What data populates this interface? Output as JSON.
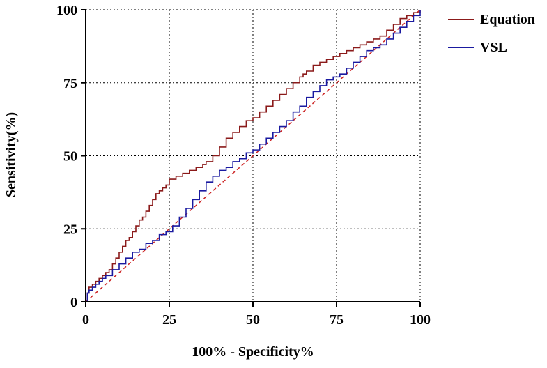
{
  "chart_data": {
    "type": "line",
    "title": "",
    "xlabel": "100% - Specificity%",
    "ylabel": "Sensitivity(%)",
    "xlim": [
      0,
      100
    ],
    "ylim": [
      0,
      100
    ],
    "xticks": [
      0,
      25,
      50,
      75,
      100
    ],
    "yticks": [
      0,
      25,
      50,
      75,
      100
    ],
    "grid": "dotted",
    "legend_position": "top-right",
    "series": [
      {
        "name": "Equation",
        "color": "#8b1a1a",
        "x": [
          0,
          0.5,
          1,
          2,
          3,
          4,
          5,
          6,
          7,
          8,
          9,
          10,
          11,
          12,
          13,
          14,
          15,
          16,
          17,
          18,
          19,
          20,
          21,
          22,
          23,
          24,
          25,
          27,
          29,
          31,
          33,
          35,
          36,
          38,
          40,
          42,
          44,
          46,
          48,
          50,
          52,
          54,
          56,
          58,
          60,
          62,
          64,
          65,
          66,
          68,
          70,
          72,
          74,
          76,
          78,
          80,
          82,
          84,
          86,
          88,
          90,
          92,
          94,
          96,
          98,
          100
        ],
        "y": [
          0,
          3,
          5,
          6,
          7,
          8,
          9,
          10,
          11,
          13,
          15,
          17,
          19,
          21,
          22,
          24,
          26,
          28,
          29,
          31,
          33,
          35,
          37,
          38,
          39,
          40,
          42,
          43,
          44,
          45,
          46,
          47,
          48,
          50,
          53,
          56,
          58,
          60,
          62,
          63,
          65,
          67,
          69,
          71,
          73,
          75,
          77,
          78,
          79,
          81,
          82,
          83,
          84,
          85,
          86,
          87,
          88,
          89,
          90,
          91,
          93,
          95,
          97,
          98,
          99,
          100
        ]
      },
      {
        "name": "VSL",
        "color": "#1a1aa0",
        "x": [
          0,
          0.5,
          1,
          2,
          3,
          4,
          5,
          6,
          8,
          10,
          12,
          14,
          16,
          18,
          20,
          22,
          24,
          26,
          28,
          30,
          32,
          34,
          36,
          38,
          40,
          42,
          44,
          46,
          48,
          50,
          52,
          54,
          56,
          58,
          60,
          62,
          64,
          66,
          68,
          70,
          72,
          74,
          76,
          78,
          80,
          82,
          84,
          86,
          88,
          90,
          92,
          94,
          96,
          98,
          100
        ],
        "y": [
          0,
          3,
          4,
          5,
          6,
          7,
          8,
          9,
          11,
          13,
          15,
          17,
          18,
          20,
          21,
          23,
          24,
          26,
          29,
          32,
          35,
          38,
          41,
          43,
          45,
          46,
          48,
          49,
          51,
          52,
          54,
          56,
          58,
          60,
          62,
          65,
          67,
          70,
          72,
          74,
          76,
          77,
          78,
          80,
          82,
          84,
          86,
          87,
          88,
          90,
          92,
          94,
          96,
          98,
          100
        ]
      }
    ],
    "reference_line": {
      "color": "#cc2222",
      "from": [
        0,
        0
      ],
      "to": [
        100,
        100
      ],
      "style": "dashed"
    }
  },
  "axis": {
    "x_ticks": [
      "0",
      "25",
      "50",
      "75",
      "100"
    ],
    "y_ticks": [
      "0",
      "25",
      "50",
      "75",
      "100"
    ],
    "xlabel": "100% - Specificity%",
    "ylabel": "Sensitivity(%)"
  },
  "legend": {
    "items": [
      {
        "label": "Equation",
        "color": "#8b1a1a"
      },
      {
        "label": "VSL",
        "color": "#1a1aa0"
      }
    ]
  }
}
